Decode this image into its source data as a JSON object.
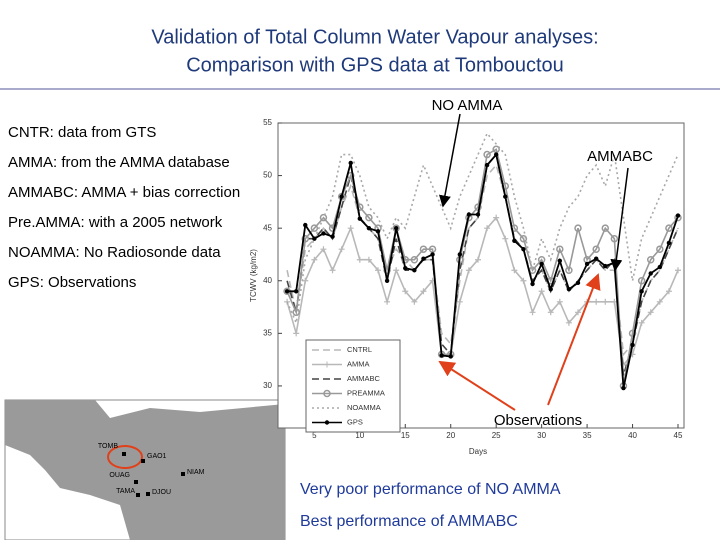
{
  "slide": {
    "title": [
      "Validation of Total Column Water Vapour analyses:",
      "Comparison with GPS data at Tombouctou"
    ],
    "definitions": [
      {
        "term": "CNTR",
        "text": ": data from GTS"
      },
      {
        "term": "AMMA",
        "text": ": from the AMMA database"
      },
      {
        "term": "AMMABC",
        "text": ": AMMA + bias correction"
      },
      {
        "term": "Pre.AMMA",
        "text": ": with a 2005 network"
      },
      {
        "term": "NOAMMA",
        "text": ": No Radiosonde data"
      },
      {
        "term": "GPS",
        "text": ": Observations"
      }
    ],
    "annotations": {
      "noamma": "NO AMMA",
      "ammabc": "AMMABC",
      "observations": "Observations"
    },
    "conclusions": [
      "Very poor performance of NO AMMA",
      "Best performance of AMMABC"
    ],
    "map_stations": [
      "TOMB",
      "GAO1",
      "NIAM",
      "OUAG",
      "TAMA",
      "DJOU"
    ]
  },
  "chart_data": {
    "type": "line",
    "x_label": "Days",
    "y_label": "TCWV (kg/m2)",
    "x": [
      2,
      3,
      4,
      5,
      6,
      7,
      8,
      9,
      10,
      11,
      12,
      13,
      14,
      15,
      16,
      17,
      18,
      19,
      20,
      21,
      22,
      23,
      24,
      25,
      26,
      27,
      28,
      29,
      30,
      31,
      32,
      33,
      34,
      35,
      36,
      37,
      38,
      39,
      40,
      41,
      42,
      43,
      44,
      45
    ],
    "xlim": [
      1,
      45
    ],
    "xticks": [
      5,
      10,
      15,
      20,
      25,
      30,
      35,
      40,
      45
    ],
    "ylim": [
      26,
      55
    ],
    "yticks": [
      30,
      35,
      40,
      45,
      50,
      55
    ],
    "series": [
      {
        "name": "CNTRL",
        "color": "#b8b8b8",
        "dash": "dashed",
        "marker": "none",
        "values": [
          41,
          37,
          43,
          44,
          45,
          44,
          47,
          49,
          46,
          45,
          44,
          41,
          43,
          42,
          41,
          42,
          42,
          35,
          34,
          40,
          45,
          46,
          50,
          51,
          48,
          44,
          43,
          40,
          41,
          39,
          41,
          39,
          40,
          41,
          42,
          41,
          41,
          33,
          34,
          38,
          40,
          41,
          43,
          45
        ]
      },
      {
        "name": "AMMA",
        "color": "#b8b8b8",
        "dash": "solid",
        "marker": "plus",
        "values": [
          38,
          35,
          40,
          42,
          43,
          41,
          43,
          45,
          42,
          42,
          41,
          38,
          41,
          39,
          38,
          39,
          40,
          33,
          33,
          38,
          41,
          42,
          45,
          46,
          44,
          41,
          40,
          37,
          39,
          37,
          38,
          36,
          37,
          38,
          38,
          38,
          38,
          32,
          33,
          36,
          37,
          38,
          39,
          41
        ]
      },
      {
        "name": "AMMABC",
        "color": "#444444",
        "dash": "dashed",
        "marker": "none",
        "values": [
          40,
          37,
          44,
          44,
          45,
          44,
          47,
          50,
          46,
          45,
          44,
          40,
          44,
          41,
          41,
          42,
          42,
          34,
          33,
          41,
          45,
          46,
          51,
          52,
          48,
          44,
          43,
          40,
          41,
          39,
          41,
          39,
          40,
          41,
          42,
          41,
          42,
          31,
          34,
          38,
          40,
          41,
          43,
          45
        ]
      },
      {
        "name": "PREAMMA",
        "color": "#999999",
        "dash": "solid",
        "marker": "circle",
        "values": [
          39,
          37,
          44,
          45,
          46,
          45,
          48,
          50,
          47,
          46,
          45,
          41,
          45,
          42,
          42,
          43,
          43,
          33,
          33,
          42,
          46,
          47,
          52,
          52.5,
          49,
          45,
          44,
          41,
          42,
          40,
          43,
          41,
          45,
          42,
          43,
          45,
          44,
          30,
          35,
          40,
          42,
          43,
          45,
          46
        ]
      },
      {
        "name": "NOAMMA",
        "color": "#a8a8a8",
        "dash": "dotted",
        "marker": "none",
        "values": [
          38,
          36,
          42,
          44,
          46,
          48,
          52,
          52,
          50,
          47,
          46,
          44,
          46,
          45,
          48,
          51,
          49,
          47,
          45,
          48,
          50,
          52,
          54,
          53,
          52,
          48,
          45,
          41,
          44,
          42,
          45,
          47,
          48,
          50,
          51,
          49,
          52,
          46,
          40,
          44,
          46,
          48,
          50,
          52
        ]
      },
      {
        "name": "GPS",
        "color": "#000000",
        "dash": "solid",
        "marker": "dot",
        "values": [
          39,
          39,
          45.3,
          44,
          44.5,
          44.2,
          48,
          51.2,
          45.9,
          45,
          44.7,
          40,
          45,
          41.2,
          41,
          42.1,
          42.5,
          32.9,
          32.8,
          42.5,
          46.3,
          46.3,
          51,
          52,
          48,
          43.8,
          43,
          39.7,
          41.6,
          39.2,
          41.9,
          39.2,
          39.8,
          41.6,
          42.1,
          41.4,
          41.7,
          29.8,
          33.9,
          39,
          40.7,
          41.3,
          43.6,
          46.2
        ]
      }
    ]
  }
}
